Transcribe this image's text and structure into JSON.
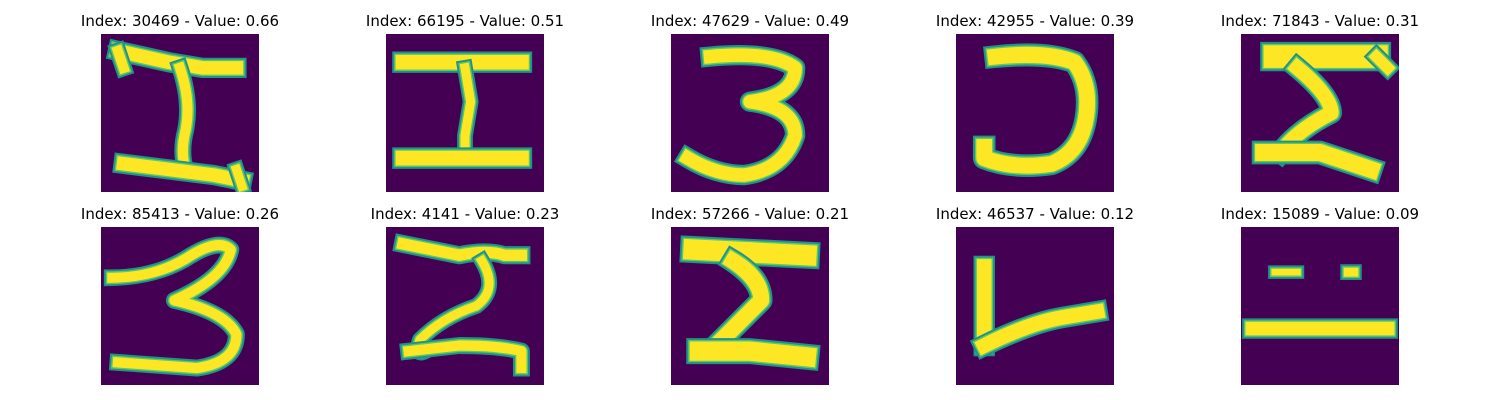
{
  "colors": {
    "background": "#440154",
    "stroke": "#fde725",
    "stroke_edge": "#21918c",
    "stroke_mid": "#5ec962",
    "title_text": "#000000",
    "page_background": "#ffffff"
  },
  "grid": {
    "rows": [
      [
        {
          "title": "Index: 30469 - Value: 0.66",
          "glyph": "sigma-serif"
        },
        {
          "title": "Index: 66195 - Value: 0.51",
          "glyph": "capital-i"
        },
        {
          "title": "Index: 47629 - Value: 0.49",
          "glyph": "three"
        },
        {
          "title": "Index: 42955 - Value: 0.39",
          "glyph": "reversed-c"
        },
        {
          "title": "Index: 71843 - Value: 0.31",
          "glyph": "sigma-bold"
        }
      ],
      [
        {
          "title": "Index: 85413 - Value: 0.26",
          "glyph": "three-wide"
        },
        {
          "title": "Index: 4141 - Value: 0.23",
          "glyph": "sigma-wavy"
        },
        {
          "title": "Index: 57266 - Value: 0.21",
          "glyph": "sigma-thick"
        },
        {
          "title": "Index: 46537 - Value: 0.12",
          "glyph": "l-shape"
        },
        {
          "title": "Index: 15089 - Value: 0.09",
          "glyph": "dashes"
        }
      ]
    ]
  }
}
